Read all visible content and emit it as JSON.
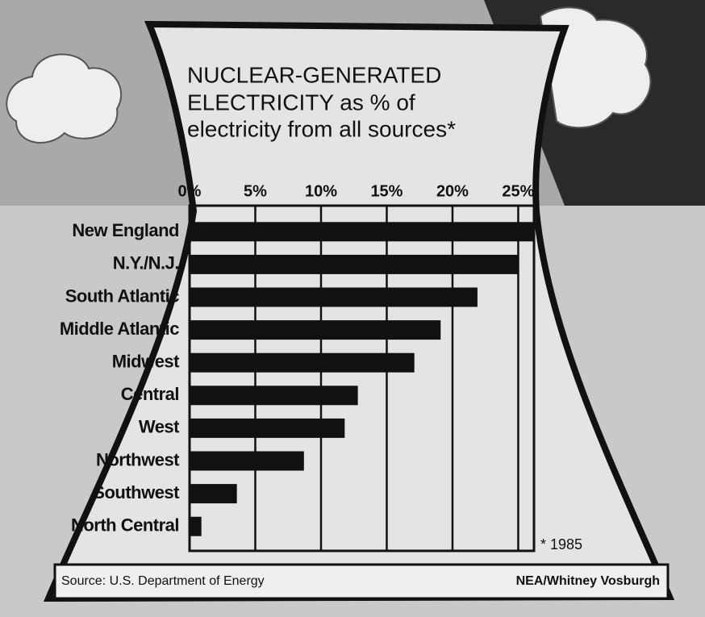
{
  "chart_data": {
    "type": "bar",
    "orientation": "horizontal",
    "title": [
      "NUCLEAR-GENERATED",
      "ELECTRICITY as % of",
      "electricity from all sources*"
    ],
    "categories": [
      "New England",
      "N.Y./N.J.",
      "South Atlantic",
      "Middle Atlantic",
      "Midwest",
      "Central",
      "West",
      "Northwest",
      "Southwest",
      "North Central"
    ],
    "values": [
      26.2,
      25.0,
      21.9,
      19.1,
      17.1,
      12.8,
      11.8,
      8.7,
      3.6,
      0.9
    ],
    "color": "#111111",
    "xlim": [
      0,
      26.2
    ],
    "xticks": [
      {
        "value": 0,
        "label": "0%"
      },
      {
        "value": 5,
        "label": "5%"
      },
      {
        "value": 10,
        "label": "10%"
      },
      {
        "value": 15,
        "label": "15%"
      },
      {
        "value": 20,
        "label": "20%"
      },
      {
        "value": 25,
        "label": "25%"
      }
    ],
    "grid": true,
    "note": "* 1985",
    "source": "Source: U.S. Department of Energy",
    "credit": "NEA/Whitney Vosburgh"
  }
}
